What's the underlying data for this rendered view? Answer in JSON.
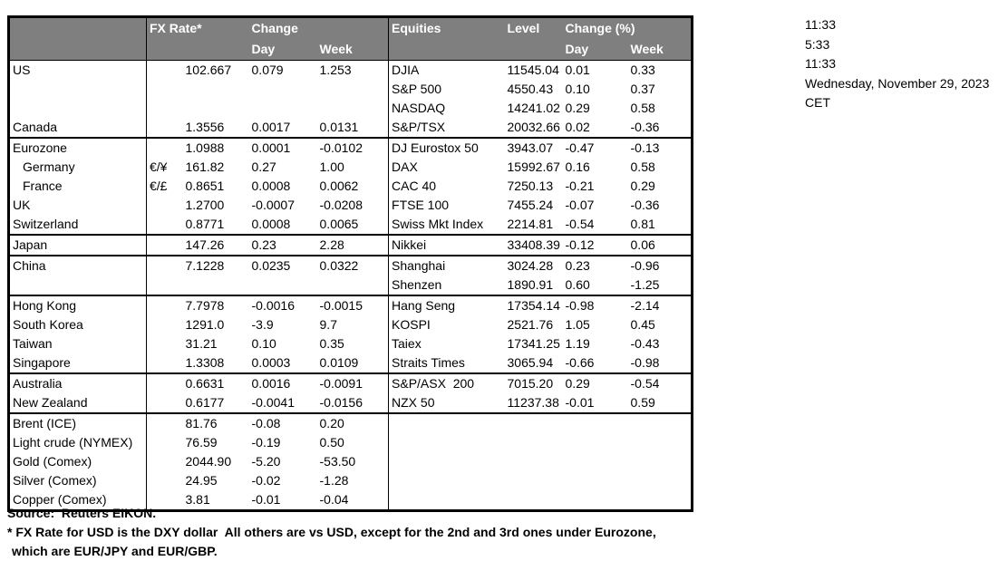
{
  "colors": {
    "header_bg": "#7f7f7f",
    "header_text": "#ffffff",
    "border": "#000000",
    "background": "#ffffff"
  },
  "header": {
    "fx": {
      "rate_label": "FX Rate*",
      "change_label": "Change",
      "day_label": "Day",
      "week_label": "Week"
    },
    "equities": {
      "title": "Equities",
      "level_label": "Level",
      "change_label": "Change (%)",
      "day_label": "Day",
      "week_label": "Week"
    }
  },
  "rows": [
    {
      "left": {
        "label": "US",
        "sym": "",
        "rate": "102.667",
        "day": "0.079",
        "week": "1.253"
      },
      "right": {
        "name": "DJIA",
        "level": "11545.04",
        "day": "0.01",
        "week": "0.33"
      }
    },
    {
      "left": {
        "label": "",
        "sym": "",
        "rate": "",
        "day": "",
        "week": ""
      },
      "right": {
        "name": "S&P 500",
        "level": "4550.43",
        "day": "0.10",
        "week": "0.37"
      }
    },
    {
      "left": {
        "label": "",
        "sym": "",
        "rate": "",
        "day": "",
        "week": ""
      },
      "right": {
        "name": "NASDAQ",
        "level": "14241.02",
        "day": "0.29",
        "week": "0.58"
      }
    },
    {
      "left": {
        "label": "Canada",
        "sym": "",
        "rate": "1.3556",
        "day": "0.0017",
        "week": "0.0131"
      },
      "right": {
        "name": "S&P/TSX",
        "level": "20032.66",
        "day": "0.02",
        "week": "-0.36"
      }
    },
    {
      "section": true,
      "left": {
        "label": "Eurozone",
        "sym": "",
        "rate": "1.0988",
        "day": "0.0001",
        "week": "-0.0102"
      },
      "right": {
        "name": "DJ Eurostox 50",
        "level": "3943.07",
        "day": "-0.47",
        "week": "-0.13"
      }
    },
    {
      "indent": true,
      "left": {
        "label": "Germany",
        "sym": "€/¥",
        "rate": "161.82",
        "day": "0.27",
        "week": "1.00"
      },
      "right": {
        "name": "DAX",
        "level": "15992.67",
        "day": "0.16",
        "week": "0.58"
      }
    },
    {
      "indent": true,
      "left": {
        "label": "France",
        "sym": "€/£",
        "rate": "0.8651",
        "day": "0.0008",
        "week": "0.0062"
      },
      "right": {
        "name": "CAC 40",
        "level": "7250.13",
        "day": "-0.21",
        "week": "0.29"
      }
    },
    {
      "left": {
        "label": "UK",
        "sym": "",
        "rate": "1.2700",
        "day": "-0.0007",
        "week": "-0.0208"
      },
      "right": {
        "name": "FTSE 100",
        "level": "7455.24",
        "day": "-0.07",
        "week": "-0.36"
      }
    },
    {
      "left": {
        "label": "Switzerland",
        "sym": "",
        "rate": "0.8771",
        "day": "0.0008",
        "week": "0.0065"
      },
      "right": {
        "name": "Swiss Mkt Index",
        "level": "2214.81",
        "day": "-0.54",
        "week": "0.81"
      }
    },
    {
      "section": true,
      "left": {
        "label": "Japan",
        "sym": "",
        "rate": "147.26",
        "day": "0.23",
        "week": "2.28"
      },
      "right": {
        "name": "Nikkei",
        "level": "33408.39",
        "day": "-0.12",
        "week": "0.06"
      }
    },
    {
      "section": true,
      "left": {
        "label": "China",
        "sym": "",
        "rate": "7.1228",
        "day": "0.0235",
        "week": "0.0322"
      },
      "right": {
        "name": "Shanghai",
        "level": "3024.28",
        "day": "0.23",
        "week": "-0.96"
      }
    },
    {
      "left": {
        "label": "",
        "sym": "",
        "rate": "",
        "day": "",
        "week": ""
      },
      "right": {
        "name": "Shenzen",
        "level": "1890.91",
        "day": "0.60",
        "week": "-1.25"
      }
    },
    {
      "section": true,
      "left": {
        "label": "Hong Kong",
        "sym": "",
        "rate": "7.7978",
        "day": "-0.0016",
        "week": "-0.0015"
      },
      "right": {
        "name": "Hang Seng",
        "level": "17354.14",
        "day": "-0.98",
        "week": "-2.14"
      }
    },
    {
      "left": {
        "label": "South Korea",
        "sym": "",
        "rate": "1291.0",
        "day": "-3.9",
        "week": "9.7"
      },
      "right": {
        "name": "KOSPI",
        "level": "2521.76",
        "day": "1.05",
        "week": "0.45"
      }
    },
    {
      "left": {
        "label": "Taiwan",
        "sym": "",
        "rate": "31.21",
        "day": "0.10",
        "week": "0.35"
      },
      "right": {
        "name": "Taiex",
        "level": "17341.25",
        "day": "1.19",
        "week": "-0.43"
      }
    },
    {
      "left": {
        "label": "Singapore",
        "sym": "",
        "rate": "1.3308",
        "day": "0.0003",
        "week": "0.0109"
      },
      "right": {
        "name": "Straits Times",
        "level": "3065.94",
        "day": "-0.66",
        "week": "-0.98"
      }
    },
    {
      "section": true,
      "left": {
        "label": "Australia",
        "sym": "",
        "rate": "0.6631",
        "day": "0.0016",
        "week": "-0.0091"
      },
      "right": {
        "name": "S&P/ASX  200",
        "level": "7015.20",
        "day": "0.29",
        "week": "-0.54"
      }
    },
    {
      "left": {
        "label": "New Zealand",
        "sym": "",
        "rate": "0.6177",
        "day": "-0.0041",
        "week": "-0.0156"
      },
      "right": {
        "name": "NZX 50",
        "level": "11237.38",
        "day": "-0.01",
        "week": "0.59"
      }
    },
    {
      "section": true,
      "left": {
        "label": "Brent (ICE)",
        "sym": "",
        "rate": "81.76",
        "day": "-0.08",
        "week": "0.20"
      },
      "right": {
        "name": "",
        "level": "",
        "day": "",
        "week": ""
      }
    },
    {
      "left": {
        "label": "Light crude (NYMEX)",
        "sym": "",
        "rate": "76.59",
        "day": "-0.19",
        "week": "0.50"
      },
      "right": {
        "name": "",
        "level": "",
        "day": "",
        "week": ""
      }
    },
    {
      "left": {
        "label": "Gold (Comex)",
        "sym": "",
        "rate": "2044.90",
        "day": "-5.20",
        "week": "-53.50"
      },
      "right": {
        "name": "",
        "level": "",
        "day": "",
        "week": ""
      }
    },
    {
      "left": {
        "label": "Silver (Comex)",
        "sym": "",
        "rate": "24.95",
        "day": "-0.02",
        "week": "-1.28"
      },
      "right": {
        "name": "",
        "level": "",
        "day": "",
        "week": ""
      }
    },
    {
      "left": {
        "label": "Copper (Comex)",
        "sym": "",
        "rate": "3.81",
        "day": "-0.01",
        "week": "-0.04"
      },
      "right": {
        "name": "",
        "level": "",
        "day": "",
        "week": ""
      }
    }
  ],
  "times": [
    "11:33",
    "5:33",
    "11:33",
    "Wednesday, November 29, 2023",
    "CET"
  ],
  "footer": {
    "source": "Source:  Reuters EIKON.",
    "note1": "* FX Rate for USD is the DXY dollar  All others are vs USD, except for the 2nd and 3rd ones under Eurozone,",
    "note2": "which are EUR/JPY and EUR/GBP."
  }
}
